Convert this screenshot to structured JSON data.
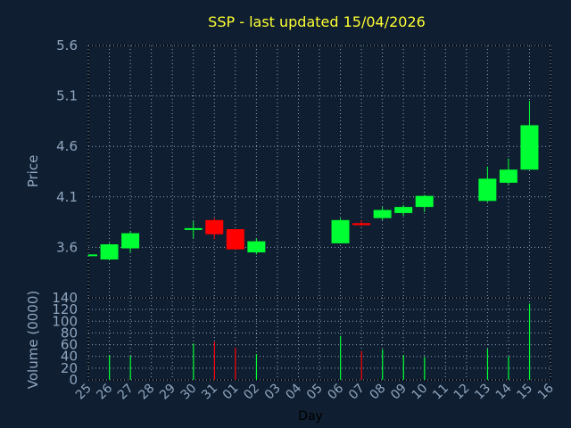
{
  "chart_data": [
    {
      "type": "candlestick",
      "title": "SSP - last updated 15/04/2026",
      "ylabel": "Price",
      "xlabel": "",
      "ylim": [
        3.1,
        5.6
      ],
      "yticks": [
        "3.6",
        "4.1",
        "4.6",
        "5.1",
        "5.6"
      ],
      "grid": true,
      "x": [
        "25",
        "26",
        "27",
        "28",
        "29",
        "30",
        "31",
        "01",
        "02",
        "03",
        "04",
        "05",
        "06",
        "07",
        "08",
        "09",
        "10",
        "11",
        "12",
        "13",
        "14",
        "15",
        "16"
      ],
      "candles": [
        {
          "x": "25",
          "open": 3.53,
          "high": 3.53,
          "low": 3.52,
          "close": 3.53
        },
        {
          "x": "26",
          "open": 3.48,
          "high": 3.64,
          "low": 3.47,
          "close": 3.63
        },
        {
          "x": "27",
          "open": 3.59,
          "high": 3.76,
          "low": 3.55,
          "close": 3.74
        },
        {
          "x": "30",
          "open": 3.78,
          "high": 3.86,
          "low": 3.69,
          "close": 3.79
        },
        {
          "x": "31",
          "open": 3.87,
          "high": 3.89,
          "low": 3.68,
          "close": 3.73
        },
        {
          "x": "01",
          "open": 3.78,
          "high": 3.78,
          "low": 3.58,
          "close": 3.58
        },
        {
          "x": "02",
          "open": 3.55,
          "high": 3.69,
          "low": 3.53,
          "close": 3.66
        },
        {
          "x": "06",
          "open": 3.64,
          "high": 3.89,
          "low": 3.64,
          "close": 3.87
        },
        {
          "x": "07",
          "open": 3.84,
          "high": 3.87,
          "low": 3.81,
          "close": 3.82
        },
        {
          "x": "08",
          "open": 3.89,
          "high": 4.0,
          "low": 3.87,
          "close": 3.97
        },
        {
          "x": "09",
          "open": 3.94,
          "high": 4.02,
          "low": 3.91,
          "close": 4.0
        },
        {
          "x": "10",
          "open": 4.0,
          "high": 4.12,
          "low": 3.95,
          "close": 4.11
        },
        {
          "x": "13",
          "open": 4.06,
          "high": 4.4,
          "low": 4.05,
          "close": 4.28
        },
        {
          "x": "14",
          "open": 4.24,
          "high": 4.48,
          "low": 4.22,
          "close": 4.37
        },
        {
          "x": "15",
          "open": 4.37,
          "high": 5.05,
          "low": 4.37,
          "close": 4.81
        }
      ],
      "colors": {
        "up": "#00ff33",
        "down": "#ff0000",
        "background": "#0f1e30",
        "grid": "#8fa6c0",
        "title": "#ffff33",
        "text": "#8fa6c0"
      }
    },
    {
      "type": "bar",
      "ylabel": "Volume (0000)",
      "xlabel": "Day",
      "ylim": [
        0,
        140
      ],
      "yticks": [
        "0",
        "20",
        "40",
        "60",
        "80",
        "100",
        "120",
        "140"
      ],
      "x": [
        "25",
        "26",
        "27",
        "28",
        "29",
        "30",
        "31",
        "01",
        "02",
        "03",
        "04",
        "05",
        "06",
        "07",
        "08",
        "09",
        "10",
        "11",
        "12",
        "13",
        "14",
        "15",
        "16"
      ],
      "bars": [
        {
          "x": "26",
          "value": 42,
          "color": "#00ff33"
        },
        {
          "x": "27",
          "value": 41,
          "color": "#00ff33"
        },
        {
          "x": "30",
          "value": 62,
          "color": "#00ff33"
        },
        {
          "x": "31",
          "value": 65,
          "color": "#ff0000"
        },
        {
          "x": "01",
          "value": 55,
          "color": "#ff0000"
        },
        {
          "x": "02",
          "value": 44,
          "color": "#00ff33"
        },
        {
          "x": "06",
          "value": 75,
          "color": "#00ff33"
        },
        {
          "x": "07",
          "value": 49,
          "color": "#ff0000"
        },
        {
          "x": "08",
          "value": 52,
          "color": "#00ff33"
        },
        {
          "x": "09",
          "value": 42,
          "color": "#00ff33"
        },
        {
          "x": "10",
          "value": 39,
          "color": "#00ff33"
        },
        {
          "x": "13",
          "value": 53,
          "color": "#00ff33"
        },
        {
          "x": "14",
          "value": 40,
          "color": "#00ff33"
        },
        {
          "x": "15",
          "value": 130,
          "color": "#00ff33"
        }
      ]
    }
  ]
}
